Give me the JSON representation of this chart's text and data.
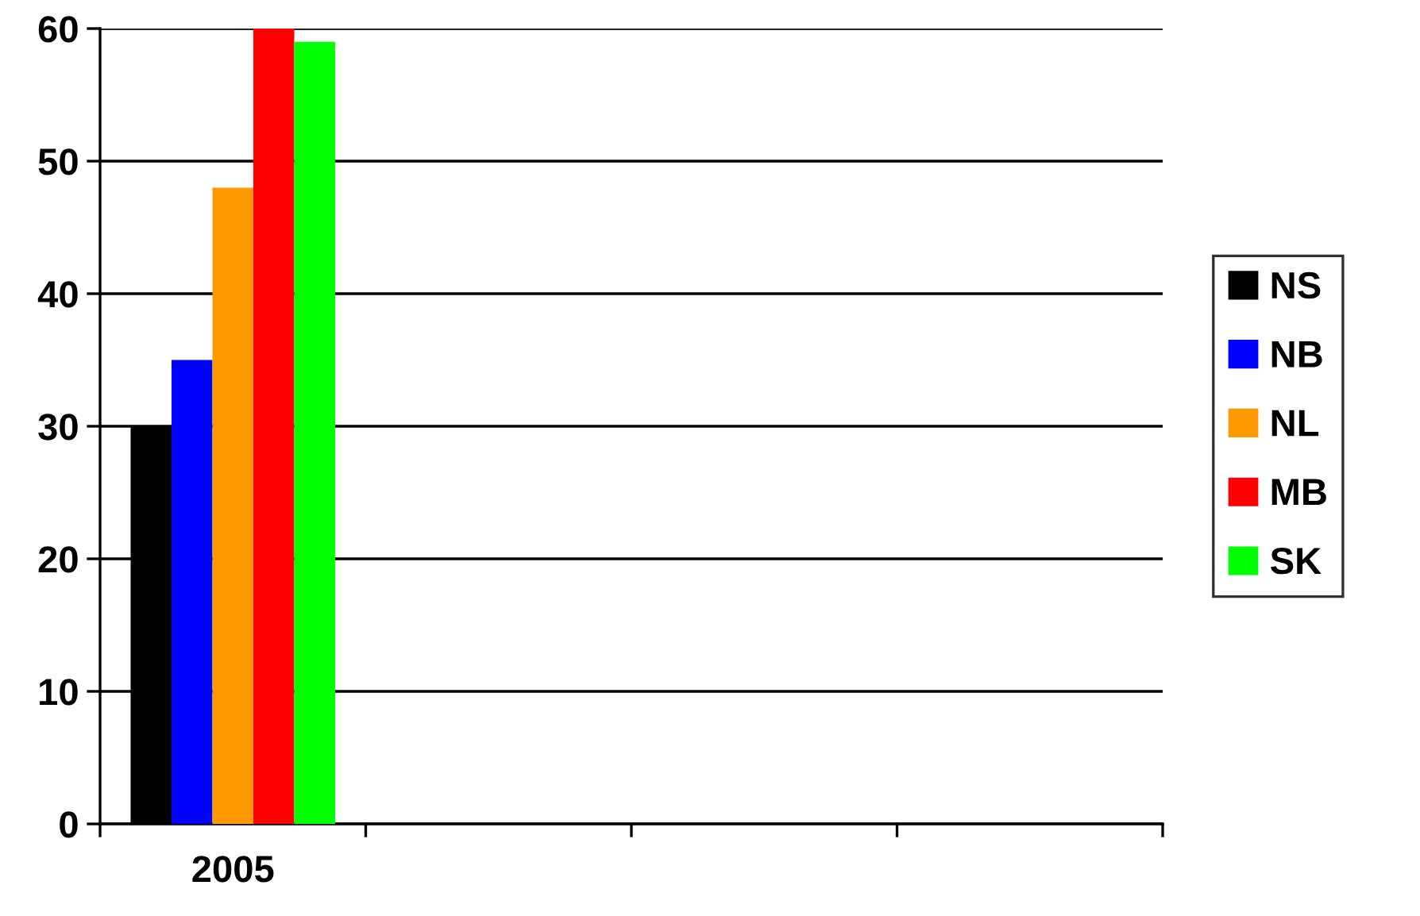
{
  "chart_data": {
    "type": "bar",
    "categories": [
      "2005",
      null,
      null,
      null
    ],
    "series": [
      {
        "name": "NS",
        "color": "#000000",
        "values": [
          30,
          null,
          null,
          null
        ]
      },
      {
        "name": "NB",
        "color": "#0000ff",
        "values": [
          35,
          null,
          null,
          null
        ]
      },
      {
        "name": "NL",
        "color": "#ff9900",
        "values": [
          48,
          null,
          null,
          null
        ]
      },
      {
        "name": "MB",
        "color": "#ff0000",
        "values": [
          60,
          null,
          null,
          null
        ]
      },
      {
        "name": "SK",
        "color": "#00ff00",
        "values": [
          59,
          null,
          null,
          null
        ]
      }
    ],
    "ylim": [
      0,
      60
    ],
    "yticks": [
      0,
      10,
      20,
      30,
      40,
      50,
      60
    ],
    "grid": "y",
    "legend": "right"
  }
}
